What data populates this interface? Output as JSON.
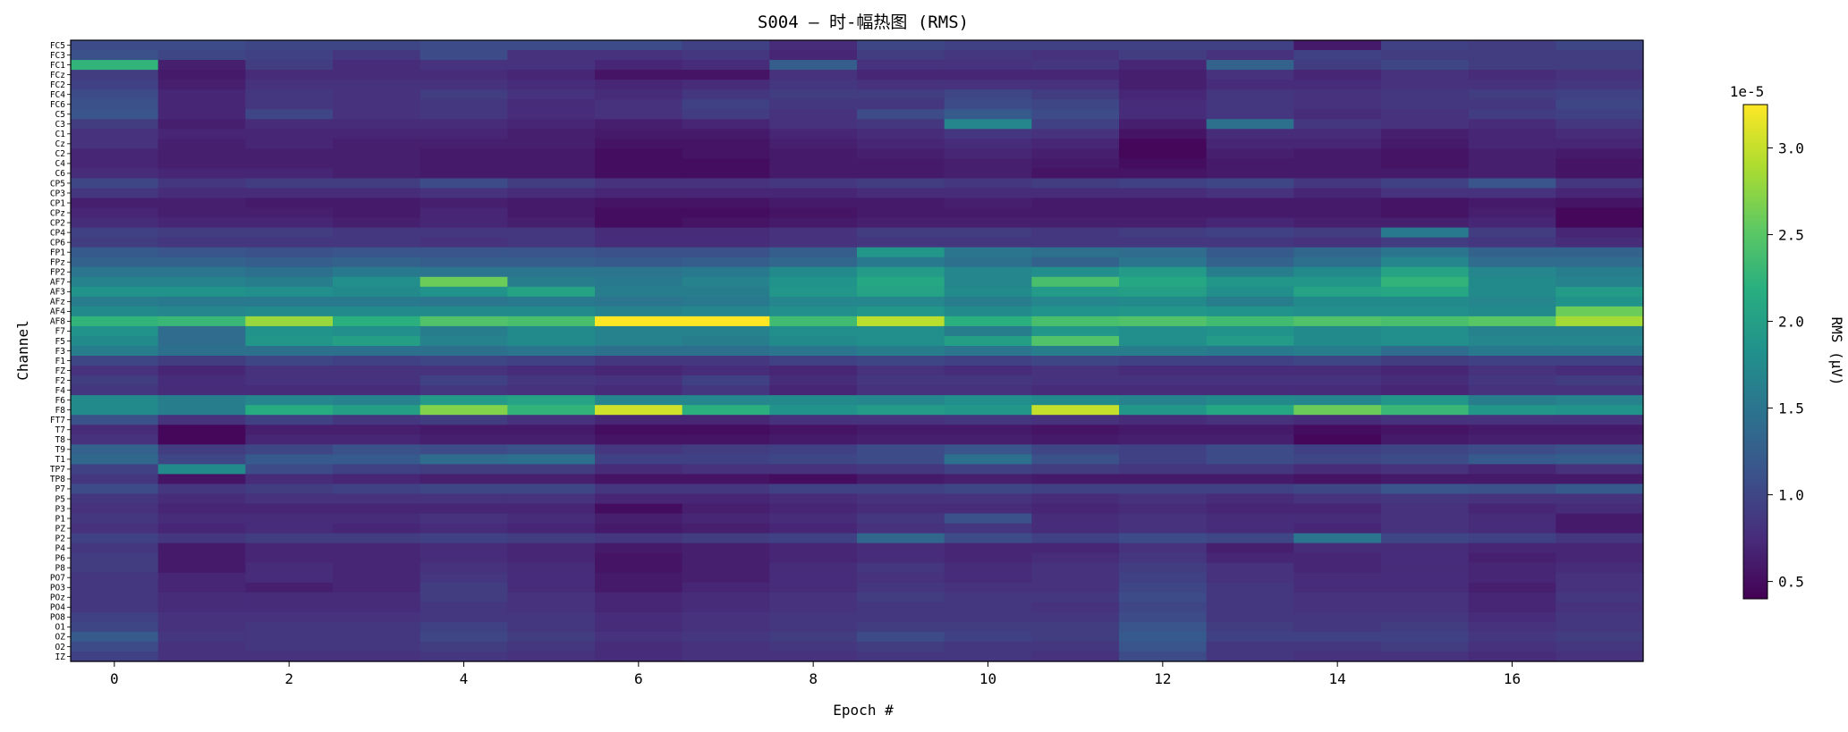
{
  "chart_data": {
    "type": "heatmap",
    "title": "S004 — 时-幅热图 (RMS)",
    "xlabel": "Epoch #",
    "ylabel": "Channel",
    "x_ticks": [
      0,
      2,
      4,
      6,
      8,
      10,
      12,
      14,
      16
    ],
    "epochs": [
      0,
      1,
      2,
      3,
      4,
      5,
      6,
      7,
      8,
      9,
      10,
      11,
      12,
      13,
      14,
      15,
      16,
      17
    ],
    "channels": [
      "FC5",
      "FC3",
      "FC1",
      "FCz",
      "FC2",
      "FC4",
      "FC6",
      "C5",
      "C3",
      "C1",
      "Cz",
      "C2",
      "C4",
      "C6",
      "CP5",
      "CP3",
      "CP1",
      "CPz",
      "CP2",
      "CP4",
      "CP6",
      "FP1",
      "FPz",
      "FP2",
      "AF7",
      "AF3",
      "AFz",
      "AF4",
      "AF8",
      "F7",
      "F5",
      "F3",
      "F1",
      "FZ",
      "F2",
      "F4",
      "F6",
      "F8",
      "FT7",
      "T7",
      "T8",
      "T9",
      "T1",
      "TP7",
      "TP8",
      "P7",
      "P5",
      "P3",
      "P1",
      "PZ",
      "P2",
      "P4",
      "P6",
      "P8",
      "PO7",
      "PO3",
      "POz",
      "PO4",
      "PO8",
      "O1",
      "OZ",
      "O2",
      "IZ"
    ],
    "colorbar": {
      "label": "RMS (μV)",
      "multiplier_label": "1e-5",
      "ticks": [
        0.5,
        1.0,
        1.5,
        2.0,
        2.5,
        3.0
      ],
      "tick_labels": [
        "0.5",
        "1.0",
        "1.5",
        "2.0",
        "2.5",
        "3.0"
      ],
      "vmin": 0.4,
      "vmax": 3.25,
      "colormap": "viridis"
    },
    "values_scale": "×1e-5 μV",
    "values": [
      [
        1.05,
        1.05,
        1.0,
        1.0,
        1.05,
        1.05,
        1.05,
        0.95,
        0.75,
        1.0,
        0.95,
        0.95,
        0.95,
        0.95,
        0.6,
        0.95,
        0.9,
        1.0
      ],
      [
        1.1,
        1.0,
        0.95,
        0.85,
        1.05,
        0.8,
        0.8,
        0.85,
        0.7,
        0.9,
        0.85,
        0.8,
        0.9,
        0.8,
        0.95,
        0.9,
        0.9,
        0.9
      ],
      [
        2.25,
        0.65,
        0.9,
        0.75,
        0.8,
        0.8,
        0.7,
        0.75,
        1.25,
        0.8,
        0.8,
        0.85,
        0.7,
        1.3,
        0.9,
        1.0,
        0.9,
        0.9
      ],
      [
        0.9,
        0.6,
        0.75,
        0.75,
        0.75,
        0.7,
        0.55,
        0.55,
        0.8,
        0.7,
        0.7,
        0.7,
        0.65,
        0.8,
        0.7,
        0.8,
        0.75,
        0.8
      ],
      [
        0.95,
        0.65,
        0.8,
        0.8,
        0.8,
        0.75,
        0.7,
        0.75,
        0.85,
        0.8,
        0.8,
        0.8,
        0.65,
        0.75,
        0.75,
        0.8,
        0.8,
        0.85
      ],
      [
        1.05,
        0.7,
        0.85,
        0.8,
        0.9,
        0.8,
        0.75,
        0.85,
        0.9,
        0.9,
        1.0,
        0.9,
        0.7,
        0.85,
        0.8,
        0.85,
        0.9,
        0.95
      ],
      [
        1.1,
        0.7,
        0.85,
        0.8,
        0.85,
        0.75,
        0.8,
        0.95,
        0.85,
        0.85,
        1.05,
        1.0,
        0.75,
        0.85,
        0.8,
        0.85,
        0.85,
        1.0
      ],
      [
        1.15,
        0.7,
        1.0,
        0.8,
        0.85,
        0.75,
        0.8,
        0.9,
        0.8,
        1.05,
        1.2,
        1.05,
        0.75,
        0.85,
        0.75,
        0.8,
        0.9,
        0.95
      ],
      [
        0.9,
        0.65,
        0.75,
        0.75,
        0.75,
        0.7,
        0.65,
        0.7,
        0.8,
        0.85,
        1.7,
        0.95,
        0.65,
        1.45,
        0.85,
        0.8,
        0.75,
        0.85
      ],
      [
        0.8,
        0.7,
        0.7,
        0.7,
        0.7,
        0.65,
        0.6,
        0.6,
        0.7,
        0.75,
        0.85,
        0.8,
        0.55,
        0.75,
        0.75,
        0.65,
        0.7,
        0.75
      ],
      [
        0.8,
        0.65,
        0.7,
        0.65,
        0.65,
        0.65,
        0.55,
        0.55,
        0.65,
        0.7,
        0.75,
        0.7,
        0.45,
        0.7,
        0.7,
        0.6,
        0.7,
        0.7
      ],
      [
        0.7,
        0.65,
        0.65,
        0.65,
        0.6,
        0.6,
        0.5,
        0.55,
        0.6,
        0.65,
        0.7,
        0.65,
        0.45,
        0.65,
        0.6,
        0.55,
        0.65,
        0.6
      ],
      [
        0.7,
        0.65,
        0.65,
        0.65,
        0.6,
        0.6,
        0.5,
        0.5,
        0.6,
        0.6,
        0.65,
        0.6,
        0.5,
        0.6,
        0.6,
        0.55,
        0.65,
        0.55
      ],
      [
        0.75,
        0.7,
        0.7,
        0.65,
        0.6,
        0.6,
        0.5,
        0.5,
        0.6,
        0.6,
        0.65,
        0.55,
        0.55,
        0.6,
        0.6,
        0.6,
        0.65,
        0.55
      ],
      [
        1.0,
        0.85,
        0.9,
        0.9,
        1.05,
        0.9,
        0.8,
        0.8,
        0.85,
        0.9,
        0.85,
        0.9,
        0.95,
        1.0,
        0.85,
        0.95,
        1.15,
        0.85
      ],
      [
        0.85,
        0.75,
        0.75,
        0.75,
        0.8,
        0.75,
        0.7,
        0.7,
        0.7,
        0.75,
        0.75,
        0.75,
        0.75,
        0.8,
        0.7,
        0.8,
        0.8,
        0.7
      ],
      [
        0.65,
        0.65,
        0.6,
        0.6,
        0.65,
        0.6,
        0.55,
        0.55,
        0.6,
        0.6,
        0.65,
        0.6,
        0.6,
        0.6,
        0.6,
        0.55,
        0.6,
        0.55
      ],
      [
        0.7,
        0.65,
        0.65,
        0.6,
        0.7,
        0.6,
        0.5,
        0.5,
        0.55,
        0.6,
        0.6,
        0.6,
        0.6,
        0.6,
        0.6,
        0.55,
        0.65,
        0.45
      ],
      [
        0.75,
        0.7,
        0.7,
        0.65,
        0.7,
        0.65,
        0.5,
        0.55,
        0.6,
        0.65,
        0.65,
        0.65,
        0.65,
        0.7,
        0.65,
        0.65,
        0.7,
        0.45
      ],
      [
        0.95,
        0.9,
        0.9,
        0.85,
        0.85,
        0.85,
        0.75,
        0.75,
        0.8,
        0.9,
        0.9,
        0.85,
        0.9,
        0.95,
        0.9,
        1.55,
        0.9,
        0.7
      ],
      [
        0.9,
        0.85,
        0.85,
        0.85,
        0.8,
        0.85,
        0.75,
        0.75,
        0.8,
        0.85,
        0.85,
        0.85,
        0.85,
        0.85,
        0.8,
        0.9,
        0.85,
        0.75
      ],
      [
        1.2,
        1.15,
        1.1,
        1.15,
        1.15,
        1.15,
        1.1,
        1.1,
        1.25,
        1.9,
        1.5,
        1.45,
        1.4,
        1.2,
        1.35,
        1.5,
        1.3,
        1.3
      ],
      [
        1.3,
        1.3,
        1.25,
        1.3,
        1.25,
        1.25,
        1.2,
        1.25,
        1.35,
        1.55,
        1.45,
        1.3,
        1.5,
        1.3,
        1.45,
        1.7,
        1.4,
        1.4
      ],
      [
        1.5,
        1.5,
        1.45,
        1.55,
        1.5,
        1.5,
        1.5,
        1.55,
        1.75,
        1.95,
        1.7,
        1.8,
        1.95,
        1.6,
        1.75,
        2.05,
        1.7,
        1.6
      ],
      [
        1.65,
        1.65,
        1.6,
        1.8,
        2.6,
        1.6,
        1.55,
        1.65,
        1.85,
        2.1,
        1.7,
        2.4,
        2.1,
        1.9,
        1.9,
        2.25,
        1.75,
        1.65
      ],
      [
        1.85,
        1.85,
        1.8,
        1.75,
        1.85,
        2.05,
        1.6,
        1.6,
        1.9,
        2.05,
        1.75,
        1.95,
        2.0,
        1.8,
        2.05,
        2.1,
        1.75,
        1.95
      ],
      [
        1.6,
        1.55,
        1.55,
        1.55,
        1.5,
        1.55,
        1.5,
        1.55,
        1.7,
        1.7,
        1.6,
        1.7,
        1.75,
        1.6,
        1.75,
        1.75,
        1.7,
        1.85
      ],
      [
        1.75,
        1.7,
        1.75,
        1.75,
        1.75,
        1.75,
        1.65,
        1.7,
        1.8,
        1.9,
        1.75,
        1.85,
        1.9,
        1.85,
        1.8,
        1.8,
        1.75,
        2.6
      ],
      [
        2.25,
        2.3,
        2.8,
        2.2,
        2.45,
        2.4,
        3.25,
        3.25,
        2.35,
        2.95,
        2.2,
        2.4,
        2.45,
        2.35,
        2.45,
        2.4,
        2.5,
        2.85
      ],
      [
        1.85,
        1.4,
        1.85,
        1.8,
        1.6,
        1.75,
        1.65,
        1.65,
        1.8,
        1.8,
        1.6,
        1.9,
        1.8,
        1.85,
        1.75,
        1.8,
        1.65,
        1.65
      ],
      [
        1.75,
        1.4,
        1.9,
        2.0,
        1.65,
        1.75,
        1.65,
        1.6,
        1.75,
        1.8,
        2.0,
        2.45,
        1.8,
        1.95,
        1.75,
        1.8,
        1.7,
        1.7
      ],
      [
        1.6,
        1.45,
        1.45,
        1.45,
        1.45,
        1.5,
        1.45,
        1.45,
        1.5,
        1.6,
        1.5,
        1.6,
        1.6,
        1.55,
        1.6,
        1.4,
        1.55,
        1.55
      ],
      [
        1.0,
        0.9,
        1.0,
        0.95,
        1.0,
        0.95,
        0.85,
        0.85,
        0.95,
        1.0,
        0.95,
        1.0,
        0.95,
        0.95,
        1.0,
        0.9,
        0.95,
        0.95
      ],
      [
        0.8,
        0.7,
        0.8,
        0.8,
        0.8,
        0.75,
        0.7,
        0.75,
        0.7,
        0.8,
        0.75,
        0.8,
        0.75,
        0.75,
        0.75,
        0.7,
        0.8,
        0.75
      ],
      [
        0.9,
        0.75,
        0.8,
        0.8,
        0.95,
        0.85,
        0.8,
        0.95,
        0.75,
        0.85,
        0.85,
        0.8,
        0.8,
        0.8,
        0.8,
        0.75,
        0.85,
        0.9
      ],
      [
        0.85,
        0.75,
        0.75,
        0.75,
        0.85,
        0.8,
        0.75,
        0.85,
        0.7,
        0.8,
        0.8,
        0.75,
        0.75,
        0.75,
        0.75,
        0.7,
        0.8,
        0.8
      ],
      [
        1.75,
        1.6,
        1.7,
        1.65,
        1.95,
        2.05,
        1.7,
        1.7,
        1.75,
        1.7,
        1.8,
        1.75,
        1.65,
        1.75,
        1.7,
        1.9,
        1.6,
        1.65
      ],
      [
        1.75,
        1.6,
        2.15,
        2.0,
        2.7,
        2.25,
        3.05,
        2.2,
        1.85,
        1.95,
        1.9,
        3.0,
        1.9,
        2.1,
        2.6,
        2.3,
        1.9,
        1.85
      ],
      [
        1.1,
        0.8,
        0.95,
        0.85,
        0.9,
        0.8,
        0.7,
        0.7,
        0.8,
        0.8,
        0.85,
        0.8,
        0.75,
        0.8,
        0.75,
        0.8,
        0.8,
        0.8
      ],
      [
        0.75,
        0.45,
        0.65,
        0.65,
        0.6,
        0.6,
        0.5,
        0.5,
        0.55,
        0.6,
        0.6,
        0.55,
        0.6,
        0.6,
        0.5,
        0.55,
        0.6,
        0.6
      ],
      [
        0.8,
        0.45,
        0.7,
        0.7,
        0.65,
        0.65,
        0.55,
        0.55,
        0.6,
        0.65,
        0.65,
        0.6,
        0.65,
        0.65,
        0.45,
        0.6,
        0.65,
        0.65
      ],
      [
        1.3,
        0.9,
        1.0,
        1.1,
        1.05,
        1.1,
        0.85,
        0.9,
        0.95,
        1.05,
        1.15,
        1.0,
        0.95,
        1.05,
        0.95,
        1.0,
        1.05,
        1.1
      ],
      [
        1.35,
        1.0,
        1.2,
        1.2,
        1.4,
        1.45,
        0.95,
        0.95,
        1.0,
        1.05,
        1.45,
        1.1,
        0.95,
        1.05,
        1.0,
        1.05,
        1.2,
        1.25
      ],
      [
        0.95,
        1.75,
        1.05,
        0.95,
        0.9,
        0.9,
        0.75,
        0.8,
        0.8,
        0.85,
        0.95,
        0.9,
        0.85,
        0.85,
        0.75,
        0.8,
        0.7,
        0.8
      ],
      [
        0.85,
        0.55,
        0.75,
        0.7,
        0.65,
        0.65,
        0.55,
        0.55,
        0.5,
        0.6,
        0.65,
        0.6,
        0.6,
        0.6,
        0.55,
        0.6,
        0.6,
        0.6
      ],
      [
        1.05,
        0.85,
        0.9,
        0.95,
        1.0,
        1.0,
        0.85,
        0.85,
        0.95,
        0.95,
        1.0,
        0.95,
        0.95,
        0.95,
        1.0,
        1.15,
        1.1,
        1.2
      ],
      [
        0.85,
        0.75,
        0.8,
        0.8,
        0.8,
        0.8,
        0.7,
        0.7,
        0.75,
        0.8,
        0.8,
        0.75,
        0.8,
        0.75,
        0.8,
        0.85,
        0.8,
        0.8
      ],
      [
        0.8,
        0.7,
        0.7,
        0.7,
        0.7,
        0.7,
        0.5,
        0.65,
        0.7,
        0.75,
        0.75,
        0.7,
        0.75,
        0.7,
        0.7,
        0.8,
        0.7,
        0.75
      ],
      [
        0.85,
        0.75,
        0.75,
        0.75,
        0.8,
        0.75,
        0.65,
        0.7,
        0.75,
        0.85,
        1.1,
        0.75,
        0.8,
        0.75,
        0.75,
        0.8,
        0.75,
        0.6
      ],
      [
        0.8,
        0.7,
        0.75,
        0.7,
        0.75,
        0.7,
        0.6,
        0.65,
        0.7,
        0.8,
        0.85,
        0.75,
        0.8,
        0.75,
        0.7,
        0.8,
        0.75,
        0.6
      ],
      [
        0.95,
        0.85,
        0.9,
        0.9,
        0.95,
        0.9,
        0.85,
        0.9,
        0.95,
        1.35,
        1.05,
        0.95,
        1.05,
        1.0,
        1.5,
        1.0,
        0.95,
        0.85
      ],
      [
        0.85,
        0.6,
        0.7,
        0.7,
        0.75,
        0.7,
        0.6,
        0.65,
        0.7,
        0.75,
        0.7,
        0.7,
        0.8,
        0.65,
        0.75,
        0.75,
        0.7,
        0.7
      ],
      [
        0.9,
        0.6,
        0.7,
        0.7,
        0.75,
        0.7,
        0.55,
        0.65,
        0.7,
        0.75,
        0.7,
        0.75,
        0.85,
        0.7,
        0.7,
        0.75,
        0.65,
        0.7
      ],
      [
        0.9,
        0.6,
        0.75,
        0.7,
        0.8,
        0.75,
        0.55,
        0.65,
        0.75,
        0.85,
        0.75,
        0.8,
        0.9,
        0.8,
        0.7,
        0.75,
        0.7,
        0.75
      ],
      [
        0.85,
        0.7,
        0.75,
        0.7,
        0.85,
        0.75,
        0.6,
        0.65,
        0.75,
        0.8,
        0.75,
        0.8,
        0.95,
        0.8,
        0.75,
        0.75,
        0.7,
        0.8
      ],
      [
        0.85,
        0.7,
        0.65,
        0.7,
        0.9,
        0.75,
        0.6,
        0.7,
        0.75,
        0.85,
        0.8,
        0.8,
        1.0,
        0.85,
        0.75,
        0.75,
        0.65,
        0.8
      ],
      [
        0.85,
        0.75,
        0.75,
        0.75,
        0.9,
        0.8,
        0.7,
        0.75,
        0.8,
        0.9,
        0.85,
        0.85,
        1.05,
        0.85,
        0.8,
        0.8,
        0.7,
        0.85
      ],
      [
        0.85,
        0.75,
        0.75,
        0.75,
        0.85,
        0.8,
        0.7,
        0.75,
        0.8,
        0.85,
        0.85,
        0.8,
        1.0,
        0.85,
        0.8,
        0.8,
        0.7,
        0.8
      ],
      [
        0.95,
        0.8,
        0.8,
        0.8,
        0.85,
        0.85,
        0.75,
        0.8,
        0.85,
        0.85,
        0.85,
        0.85,
        1.05,
        0.85,
        0.85,
        0.85,
        0.75,
        0.85
      ],
      [
        1.0,
        0.8,
        0.85,
        0.85,
        0.95,
        0.85,
        0.75,
        0.8,
        0.85,
        0.9,
        0.9,
        0.9,
        1.15,
        0.9,
        0.85,
        0.9,
        0.8,
        0.85
      ],
      [
        1.2,
        0.85,
        0.85,
        0.85,
        1.0,
        0.9,
        0.8,
        0.85,
        0.9,
        1.05,
        0.95,
        0.9,
        1.2,
        0.95,
        0.95,
        0.95,
        0.85,
        0.9
      ],
      [
        1.05,
        0.8,
        0.85,
        0.85,
        0.9,
        0.85,
        0.75,
        0.8,
        0.85,
        0.9,
        0.85,
        0.85,
        1.15,
        0.85,
        0.85,
        0.9,
        0.8,
        0.85
      ],
      [
        0.95,
        0.8,
        0.8,
        0.8,
        0.85,
        0.8,
        0.75,
        0.8,
        0.8,
        0.85,
        0.85,
        0.8,
        1.05,
        0.85,
        0.8,
        0.8,
        0.75,
        0.8
      ]
    ]
  }
}
